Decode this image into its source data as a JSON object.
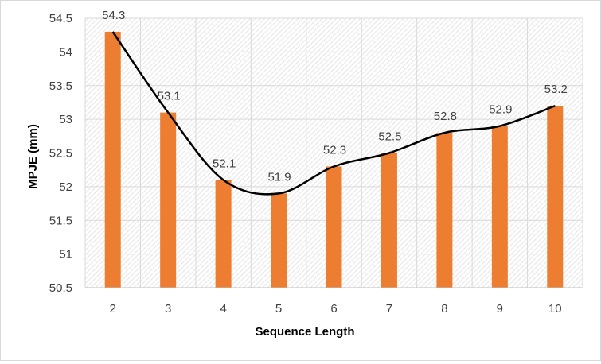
{
  "chart_data": {
    "type": "bar",
    "categories": [
      "2",
      "3",
      "4",
      "5",
      "6",
      "7",
      "8",
      "9",
      "10"
    ],
    "values": [
      54.3,
      53.1,
      52.1,
      51.9,
      52.3,
      52.5,
      52.8,
      52.9,
      53.2
    ],
    "data_labels": [
      "54.3",
      "53.1",
      "52.1",
      "51.9",
      "52.3",
      "52.5",
      "52.8",
      "52.9",
      "53.2"
    ],
    "overlay": "smoothed trend line through bar values",
    "title": "",
    "xlabel": "Sequence Length",
    "ylabel": "MPJE (mm)",
    "ylim": [
      50.5,
      54.5
    ],
    "yticks": [
      "50.5",
      "51",
      "51.5",
      "52",
      "52.5",
      "53",
      "53.5",
      "54",
      "54.5"
    ],
    "grid": true,
    "legend": "none",
    "colors": {
      "bar": "#ED7D31",
      "line": "#000000",
      "gridline": "#d9d9d9",
      "plot_pattern": "#e6e6e6"
    }
  }
}
